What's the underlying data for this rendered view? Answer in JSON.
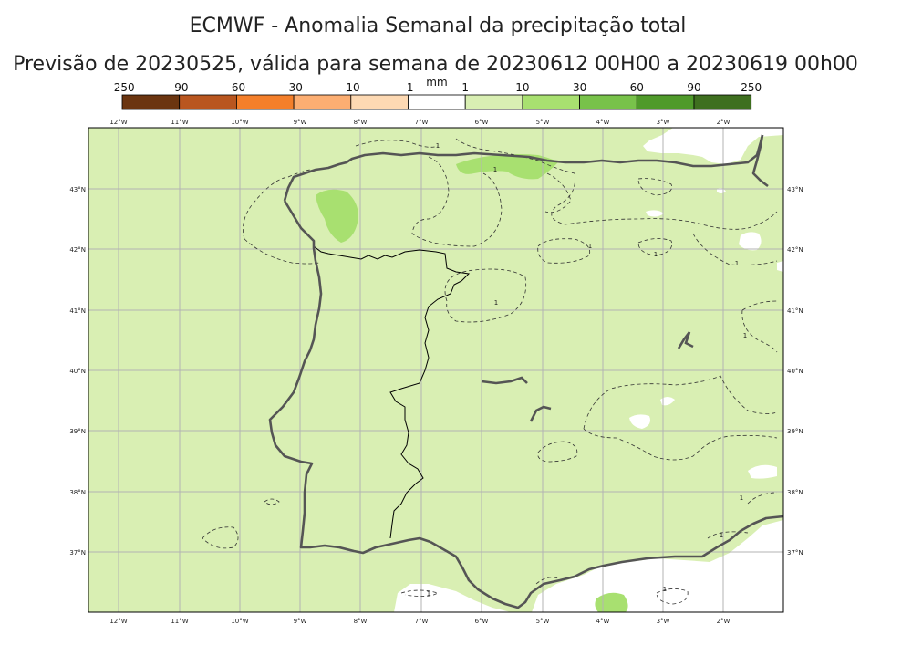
{
  "header": {
    "title": "ECMWF - Anomalia Semanal da precipitação total",
    "subtitle": "Previsão de 20230525, válida para semana de 20230612 00H00 a 20230619 00h00"
  },
  "colorbar": {
    "unit": "mm",
    "labels": [
      "-250",
      "-90",
      "-60",
      "-30",
      "-10",
      "-1",
      "1",
      "10",
      "30",
      "60",
      "90",
      "250"
    ],
    "colors": [
      "#6b3510",
      "#b9561f",
      "#f47f2a",
      "#fcae72",
      "#fdd9b3",
      "#ffffff",
      "#d9efb3",
      "#a8e070",
      "#78c24a",
      "#4f9a2a",
      "#3e6f1f"
    ]
  },
  "map": {
    "lon_labels": [
      "12°W",
      "11°W",
      "10°W",
      "9°W",
      "8°W",
      "7°W",
      "6°W",
      "5°W",
      "4°W",
      "3°W",
      "2°W"
    ],
    "lat_labels": [
      "43°N",
      "42°N",
      "41°N",
      "40°N",
      "39°N",
      "38°N",
      "37°N"
    ],
    "base_color": "#d9efb3",
    "wet_color": "#a8e070",
    "dry_color": "#ffffff",
    "contour_labels": [
      "1",
      "1",
      "1",
      "1",
      "1",
      "1",
      "1",
      "1",
      "1",
      "1",
      "1"
    ]
  }
}
